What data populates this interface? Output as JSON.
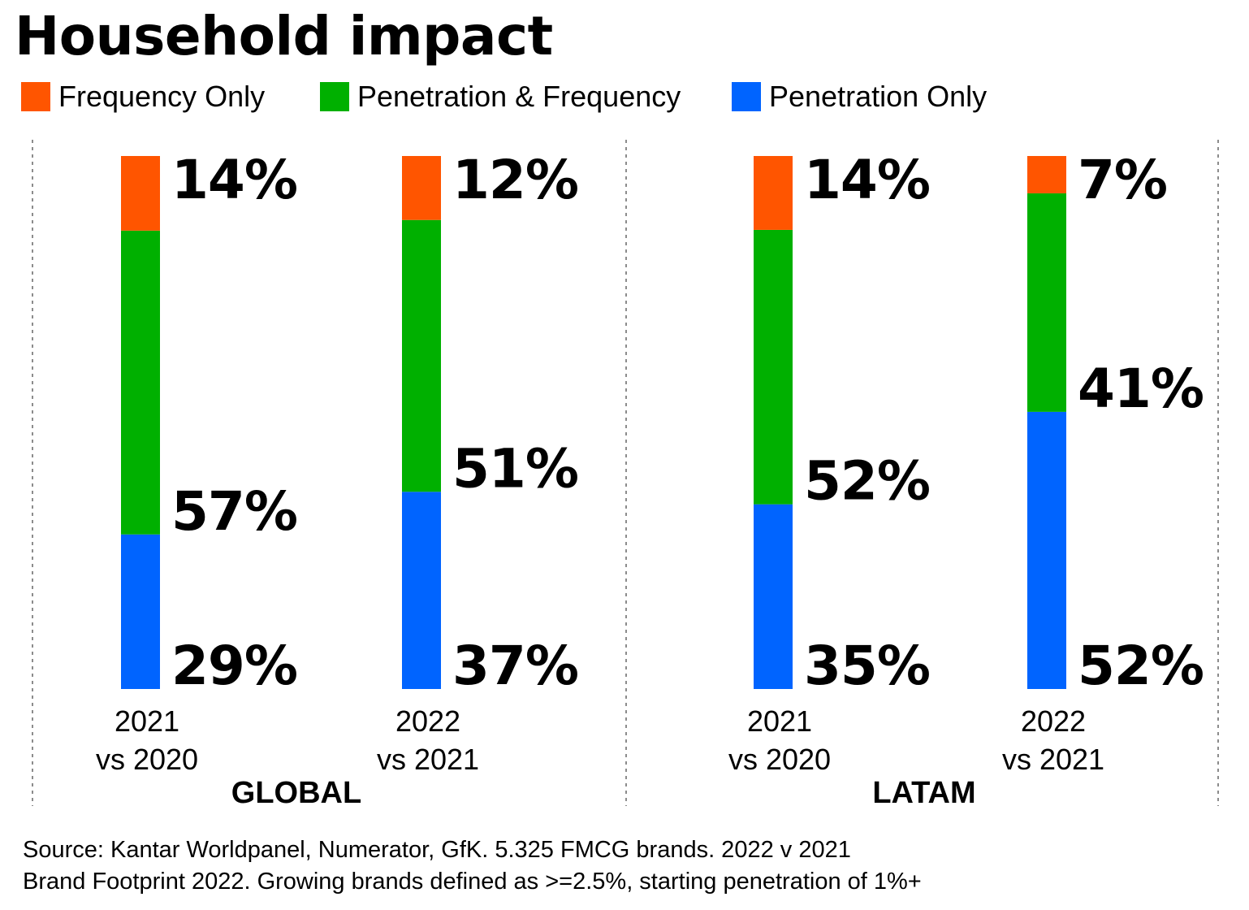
{
  "title": "Household impact",
  "legend": [
    {
      "label": "Frequency Only",
      "color": "#ff5500"
    },
    {
      "label": "Penetration & Frequency",
      "color": "#00b000"
    },
    {
      "label": "Penetration Only",
      "color": "#0064ff"
    }
  ],
  "chart_data": {
    "type": "bar",
    "stacked": true,
    "title": "Household impact",
    "series_order": [
      "Penetration Only",
      "Penetration & Frequency",
      "Frequency Only"
    ],
    "groups": [
      {
        "name": "GLOBAL",
        "bars": [
          {
            "line1": "2021",
            "line2": "vs 2020",
            "values": {
              "Penetration Only": 29,
              "Penetration & Frequency": 57,
              "Frequency Only": 14
            },
            "labels": {
              "Penetration Only": "29%",
              "Penetration & Frequency": "57%",
              "Frequency Only": "14%"
            }
          },
          {
            "line1": "2022",
            "line2": "vs 2021",
            "values": {
              "Penetration Only": 37,
              "Penetration & Frequency": 51,
              "Frequency Only": 12
            },
            "labels": {
              "Penetration Only": "37%",
              "Penetration & Frequency": "51%",
              "Frequency Only": "12%"
            }
          }
        ]
      },
      {
        "name": "LATAM",
        "bars": [
          {
            "line1": "2021",
            "line2": "vs 2020",
            "values": {
              "Penetration Only": 35,
              "Penetration & Frequency": 52,
              "Frequency Only": 14
            },
            "labels": {
              "Penetration Only": "35%",
              "Penetration & Frequency": "52%",
              "Frequency Only": "14%"
            }
          },
          {
            "line1": "2022",
            "line2": "vs 2021",
            "values": {
              "Penetration Only": 52,
              "Penetration & Frequency": 41,
              "Frequency Only": 7
            },
            "labels": {
              "Penetration Only": "52%",
              "Penetration & Frequency": "41%",
              "Frequency Only": "7%"
            }
          }
        ]
      }
    ],
    "colors": {
      "Frequency Only": "#ff5500",
      "Penetration & Frequency": "#00b000",
      "Penetration Only": "#0064ff"
    },
    "grid": false
  },
  "source": {
    "line1": "Source: Kantar Worldpanel, Numerator, GfK. 5.325 FMCG brands. 2022 v 2021",
    "line2": "Brand Footprint 2022. Growing brands defined as >=2.5%, starting penetration of 1%+"
  }
}
